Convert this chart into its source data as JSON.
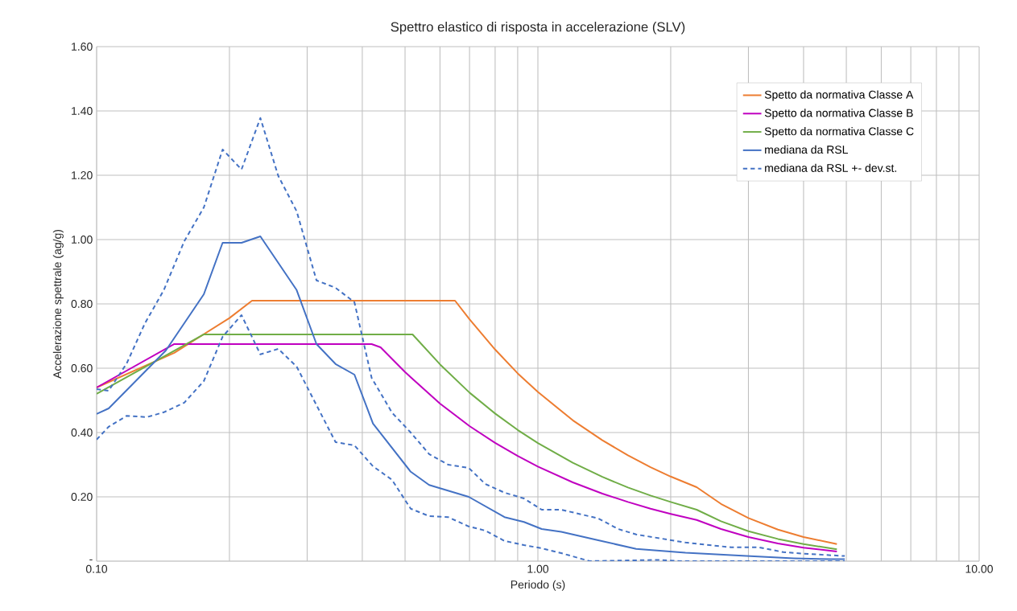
{
  "chart_data": {
    "type": "line",
    "title": "Spettro elastico di risposta in accelerazione (SLV)",
    "xlabel": "Periodo (s)",
    "ylabel": "Accelerazione spettrale (ag/g)",
    "log": "x",
    "grid": true,
    "legend": "top right",
    "xlim": [
      0.1,
      10
    ],
    "ylim": [
      0,
      1.6
    ],
    "xticks": [
      {
        "value": 0.1,
        "label": "0.10"
      },
      {
        "value": 0.2,
        "label": null
      },
      {
        "value": 0.3,
        "label": null
      },
      {
        "value": 0.4,
        "label": null
      },
      {
        "value": 0.5,
        "label": null
      },
      {
        "value": 0.6,
        "label": null
      },
      {
        "value": 0.7,
        "label": null
      },
      {
        "value": 0.8,
        "label": null
      },
      {
        "value": 0.9,
        "label": null
      },
      {
        "value": 1,
        "label": "1.00"
      },
      {
        "value": 2,
        "label": null
      },
      {
        "value": 3,
        "label": null
      },
      {
        "value": 4,
        "label": null
      },
      {
        "value": 5,
        "label": null
      },
      {
        "value": 6,
        "label": null
      },
      {
        "value": 7,
        "label": null
      },
      {
        "value": 8,
        "label": null
      },
      {
        "value": 9,
        "label": null
      },
      {
        "value": 10,
        "label": "10.00"
      }
    ],
    "yticks": [
      {
        "value": 0,
        "label": "-"
      },
      {
        "value": 0.2,
        "label": "0.20"
      },
      {
        "value": 0.4,
        "label": "0.40"
      },
      {
        "value": 0.6,
        "label": "0.60"
      },
      {
        "value": 0.8,
        "label": "0.80"
      },
      {
        "value": 1.0,
        "label": "1.00"
      },
      {
        "value": 1.2,
        "label": "1.20"
      },
      {
        "value": 1.4,
        "label": "1.40"
      },
      {
        "value": 1.6,
        "label": "1.60"
      }
    ],
    "series": [
      {
        "name": "Spetto da normativa Classe A",
        "color": "#ed7d31",
        "line_style": "solid",
        "x": [
          0.1,
          0.15,
          0.2,
          0.225,
          0.649,
          0.7,
          0.8,
          0.9,
          1.0,
          1.2,
          1.4,
          1.6,
          1.8,
          2.0,
          2.29,
          2.6,
          3.0,
          3.5,
          4.0,
          4.76
        ],
        "values": [
          0.54,
          0.648,
          0.756,
          0.81,
          0.81,
          0.752,
          0.658,
          0.584,
          0.526,
          0.438,
          0.376,
          0.329,
          0.292,
          0.263,
          0.23,
          0.178,
          0.134,
          0.098,
          0.075,
          0.053
        ]
      },
      {
        "name": "Spetto da normativa Classe B",
        "color": "#c000c0",
        "line_style": "solid",
        "x": [
          0.1,
          0.15,
          0.42,
          0.44,
          0.5,
          0.6,
          0.7,
          0.8,
          0.9,
          1.0,
          1.2,
          1.4,
          1.6,
          1.8,
          2.0,
          2.29,
          2.6,
          3.0,
          3.5,
          4.0,
          4.76
        ],
        "values": [
          0.54,
          0.675,
          0.675,
          0.665,
          0.588,
          0.49,
          0.42,
          0.368,
          0.327,
          0.294,
          0.245,
          0.21,
          0.184,
          0.163,
          0.147,
          0.128,
          0.1,
          0.075,
          0.055,
          0.042,
          0.03
        ]
      },
      {
        "name": "Spetto da normativa Classe C",
        "color": "#70ad47",
        "line_style": "solid",
        "x": [
          0.1,
          0.175,
          0.52,
          0.6,
          0.7,
          0.8,
          0.9,
          1.0,
          1.2,
          1.4,
          1.6,
          1.8,
          2.0,
          2.29,
          2.6,
          3.0,
          3.5,
          4.0,
          4.76
        ],
        "values": [
          0.52,
          0.705,
          0.705,
          0.612,
          0.524,
          0.459,
          0.408,
          0.367,
          0.306,
          0.262,
          0.229,
          0.204,
          0.184,
          0.16,
          0.124,
          0.093,
          0.069,
          0.053,
          0.037
        ]
      },
      {
        "name": "mediana da RSL",
        "color": "#4472c4",
        "line_style": "solid",
        "x": [
          0.1,
          0.1065,
          0.1435,
          0.175,
          0.193,
          0.213,
          0.235,
          0.284,
          0.315,
          0.348,
          0.384,
          0.423,
          0.515,
          0.567,
          0.697,
          0.84,
          0.93,
          1.02,
          1.13,
          1.37,
          1.67,
          2.16,
          2.97,
          3.8,
          4.6,
          4.96
        ],
        "values": [
          0.458,
          0.475,
          0.655,
          0.83,
          0.99,
          0.99,
          1.01,
          0.843,
          0.675,
          0.613,
          0.58,
          0.428,
          0.278,
          0.237,
          0.2,
          0.137,
          0.122,
          0.1,
          0.091,
          0.065,
          0.038,
          0.026,
          0.016,
          0.009,
          0.006,
          0.006
        ]
      },
      {
        "name": "mediana da RSL +- dev.st.",
        "color": "#4472c4",
        "line_style": "dashed",
        "x": [
          0.1,
          0.1065,
          0.117,
          0.1287,
          0.142,
          0.158,
          0.175,
          0.193,
          0.213,
          0.235,
          0.258,
          0.284,
          0.315,
          0.348,
          0.384,
          0.42,
          0.467,
          0.515,
          0.567,
          0.626,
          0.697,
          0.76,
          0.84,
          0.93,
          1.02,
          1.13,
          1.37,
          1.52,
          1.67,
          2.16,
          2.74,
          3.17,
          3.6,
          4.14,
          4.96
        ],
        "values": [
          0.535,
          0.53,
          0.615,
          0.74,
          0.843,
          0.995,
          1.1,
          1.28,
          1.218,
          1.378,
          1.198,
          1.088,
          0.873,
          0.85,
          0.805,
          0.57,
          0.462,
          0.4,
          0.333,
          0.3,
          0.29,
          0.24,
          0.213,
          0.195,
          0.16,
          0.16,
          0.133,
          0.1,
          0.083,
          0.058,
          0.043,
          0.043,
          0.028,
          0.022,
          0.016
        ]
      },
      {
        "color": "#4472c4",
        "line_style": "dashed",
        "x": [
          0.1,
          0.1065,
          0.117,
          0.13,
          0.142,
          0.158,
          0.175,
          0.193,
          0.213,
          0.235,
          0.258,
          0.284,
          0.315,
          0.348,
          0.384,
          0.423,
          0.467,
          0.515,
          0.567,
          0.626,
          0.697,
          0.76,
          0.84,
          0.93,
          1.02,
          1.13,
          1.31,
          1.87,
          2.1,
          4.96
        ],
        "values": [
          0.378,
          0.418,
          0.452,
          0.448,
          0.463,
          0.493,
          0.56,
          0.698,
          0.765,
          0.643,
          0.66,
          0.605,
          0.485,
          0.37,
          0.36,
          0.295,
          0.253,
          0.163,
          0.14,
          0.137,
          0.108,
          0.095,
          0.063,
          0.05,
          0.04,
          0.025,
          0,
          0.004,
          0,
          0
        ]
      }
    ]
  }
}
